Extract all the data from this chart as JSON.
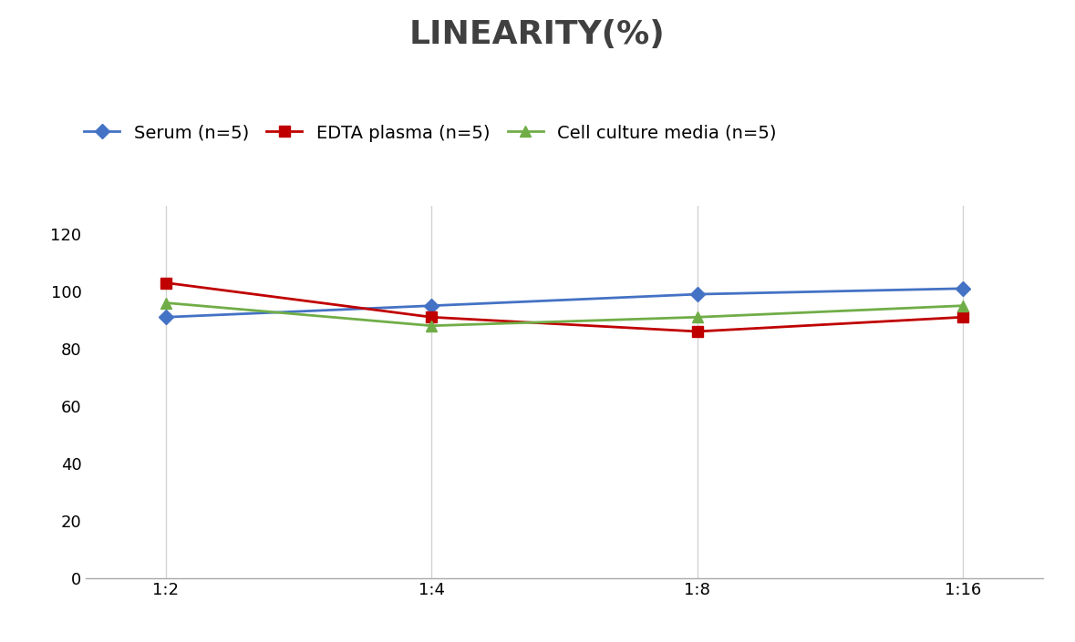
{
  "title": "LINEARITY(%)",
  "title_fontsize": 26,
  "title_fontweight": "bold",
  "title_color": "#404040",
  "x_labels": [
    "1:2",
    "1:4",
    "1:8",
    "1:16"
  ],
  "x_positions": [
    0,
    1,
    2,
    3
  ],
  "series": [
    {
      "label": "Serum (n=5)",
      "values": [
        91,
        95,
        99,
        101
      ],
      "color": "#4472C4",
      "marker": "D",
      "markersize": 8,
      "linewidth": 2
    },
    {
      "label": "EDTA plasma (n=5)",
      "values": [
        103,
        91,
        86,
        91
      ],
      "color": "#C00000",
      "marker": "s",
      "markersize": 8,
      "linewidth": 2
    },
    {
      "label": "Cell culture media (n=5)",
      "values": [
        96,
        88,
        91,
        95
      ],
      "color": "#70AD47",
      "marker": "^",
      "markersize": 8,
      "linewidth": 2
    }
  ],
  "ylim": [
    0,
    130
  ],
  "yticks": [
    0,
    20,
    40,
    60,
    80,
    100,
    120
  ],
  "grid_color": "#d3d3d3",
  "background_color": "#ffffff",
  "legend_fontsize": 14,
  "tick_fontsize": 13
}
